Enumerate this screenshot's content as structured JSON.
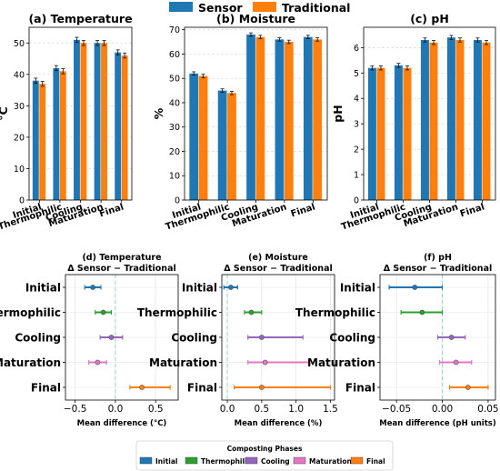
{
  "legend_top": {
    "entries": [
      {
        "name": "Sensor",
        "color": "#1f77b4"
      },
      {
        "name": "Traditional",
        "color": "#ff7f0e"
      }
    ]
  },
  "legend_bottom": {
    "title": "Composting Phases",
    "entries": [
      {
        "name": "Initial",
        "color": "#1f77b4"
      },
      {
        "name": "Thermophilic",
        "color": "#2ca02c"
      },
      {
        "name": "Cooling",
        "color": "#9467bd"
      },
      {
        "name": "Maturation",
        "color": "#e377c2"
      },
      {
        "name": "Final",
        "color": "#ff7f0e"
      }
    ]
  },
  "chart_data": [
    {
      "id": "a",
      "type": "bar",
      "title": "(a) Temperature",
      "ylabel": "°C",
      "categories": [
        "Initial",
        "Thermophilic",
        "Cooling",
        "Maturation",
        "Final"
      ],
      "ylim": [
        0,
        55
      ],
      "yticks": [
        "0",
        "10",
        "20",
        "30",
        "40",
        "50"
      ],
      "series": [
        {
          "name": "Sensor",
          "color": "#1f77b4",
          "values": [
            38,
            42,
            51,
            50,
            47
          ],
          "err": [
            0.8,
            0.8,
            0.8,
            0.8,
            0.8
          ]
        },
        {
          "name": "Traditional",
          "color": "#ff7f0e",
          "values": [
            37,
            41,
            50,
            50,
            46
          ],
          "err": [
            0.8,
            0.8,
            0.8,
            0.8,
            0.8
          ]
        }
      ]
    },
    {
      "id": "b",
      "type": "bar",
      "title": "(b) Moisture",
      "ylabel": "%",
      "categories": [
        "Initial",
        "Thermophilic",
        "Cooling",
        "Maturation",
        "Final"
      ],
      "ylim": [
        0,
        71
      ],
      "yticks": [
        "0",
        "10",
        "20",
        "30",
        "40",
        "50",
        "60",
        "70"
      ],
      "series": [
        {
          "name": "Sensor",
          "color": "#1f77b4",
          "values": [
            52,
            45,
            68,
            66,
            67
          ],
          "err": [
            0.7,
            0.7,
            0.7,
            0.7,
            0.7
          ]
        },
        {
          "name": "Traditional",
          "color": "#ff7f0e",
          "values": [
            51,
            44,
            67,
            65,
            66
          ],
          "err": [
            0.7,
            0.7,
            0.7,
            0.7,
            0.7
          ]
        }
      ]
    },
    {
      "id": "c",
      "type": "bar",
      "title": "(c) pH",
      "ylabel": "pH",
      "categories": [
        "Initial",
        "Thermophilic",
        "Cooling",
        "Maturation",
        "Final"
      ],
      "ylim": [
        0,
        6.8
      ],
      "yticks": [
        "0",
        "1",
        "2",
        "3",
        "4",
        "5",
        "6"
      ],
      "series": [
        {
          "name": "Sensor",
          "color": "#1f77b4",
          "values": [
            5.2,
            5.3,
            6.3,
            6.4,
            6.3
          ],
          "err": [
            0.08,
            0.08,
            0.08,
            0.08,
            0.08
          ]
        },
        {
          "name": "Traditional",
          "color": "#ff7f0e",
          "values": [
            5.2,
            5.2,
            6.2,
            6.3,
            6.2
          ],
          "err": [
            0.08,
            0.08,
            0.08,
            0.08,
            0.08
          ]
        }
      ]
    },
    {
      "id": "d",
      "type": "scatter",
      "title": "(d) Temperature",
      "subtitle": "Δ Sensor − Traditional",
      "xlabel": "Mean difference (°C)",
      "categories": [
        "Initial",
        "Thermophilic",
        "Cooling",
        "Maturation",
        "Final"
      ],
      "xlim": [
        -0.62,
        0.78
      ],
      "xticks": [
        -0.5,
        0.0,
        0.5
      ],
      "xtick_labels": [
        "−0.5",
        "0.0",
        "0.5"
      ],
      "colors": [
        "#1f77b4",
        "#2ca02c",
        "#9467bd",
        "#e377c2",
        "#ff7f0e"
      ],
      "mean": [
        -0.28,
        -0.15,
        -0.05,
        -0.22,
        0.33
      ],
      "lo": [
        -0.38,
        -0.25,
        -0.19,
        -0.33,
        0.18
      ],
      "hi": [
        -0.18,
        -0.05,
        0.09,
        -0.11,
        0.68
      ]
    },
    {
      "id": "e",
      "type": "scatter",
      "title": "(e) Moisture",
      "subtitle": "Δ Sensor − Traditional",
      "xlabel": "Mean difference (%)",
      "categories": [
        "Initial",
        "Thermophilic",
        "Cooling",
        "Maturation",
        "Final"
      ],
      "xlim": [
        -0.08,
        1.56
      ],
      "xticks": [
        0.0,
        0.5,
        1.0,
        1.5
      ],
      "xtick_labels": [
        "0.0",
        "0.5",
        "1.0",
        "1.5"
      ],
      "colors": [
        "#1f77b4",
        "#2ca02c",
        "#9467bd",
        "#e377c2",
        "#ff7f0e"
      ],
      "mean": [
        0.05,
        0.35,
        0.5,
        0.55,
        0.5
      ],
      "lo": [
        -0.05,
        0.25,
        0.3,
        0.3,
        0.1
      ],
      "hi": [
        0.15,
        0.5,
        1.1,
        1.2,
        1.5
      ]
    },
    {
      "id": "f",
      "type": "scatter",
      "title": "(f) pH",
      "subtitle": "Δ Sensor − Traditional",
      "xlabel": "Mean difference (pH units)",
      "categories": [
        "Initial",
        "Thermophilic",
        "Cooling",
        "Maturation",
        "Final"
      ],
      "xlim": [
        -0.068,
        0.058
      ],
      "xticks": [
        -0.05,
        0.0,
        0.05
      ],
      "xtick_labels": [
        "−0.05",
        "0.00",
        "0.05"
      ],
      "colors": [
        "#1f77b4",
        "#2ca02c",
        "#9467bd",
        "#e377c2",
        "#ff7f0e"
      ],
      "mean": [
        -0.03,
        -0.022,
        0.01,
        0.015,
        0.028
      ],
      "lo": [
        -0.058,
        -0.045,
        -0.005,
        -0.003,
        0.008
      ],
      "hi": [
        0.0,
        0.0,
        0.025,
        0.032,
        0.05
      ]
    }
  ]
}
